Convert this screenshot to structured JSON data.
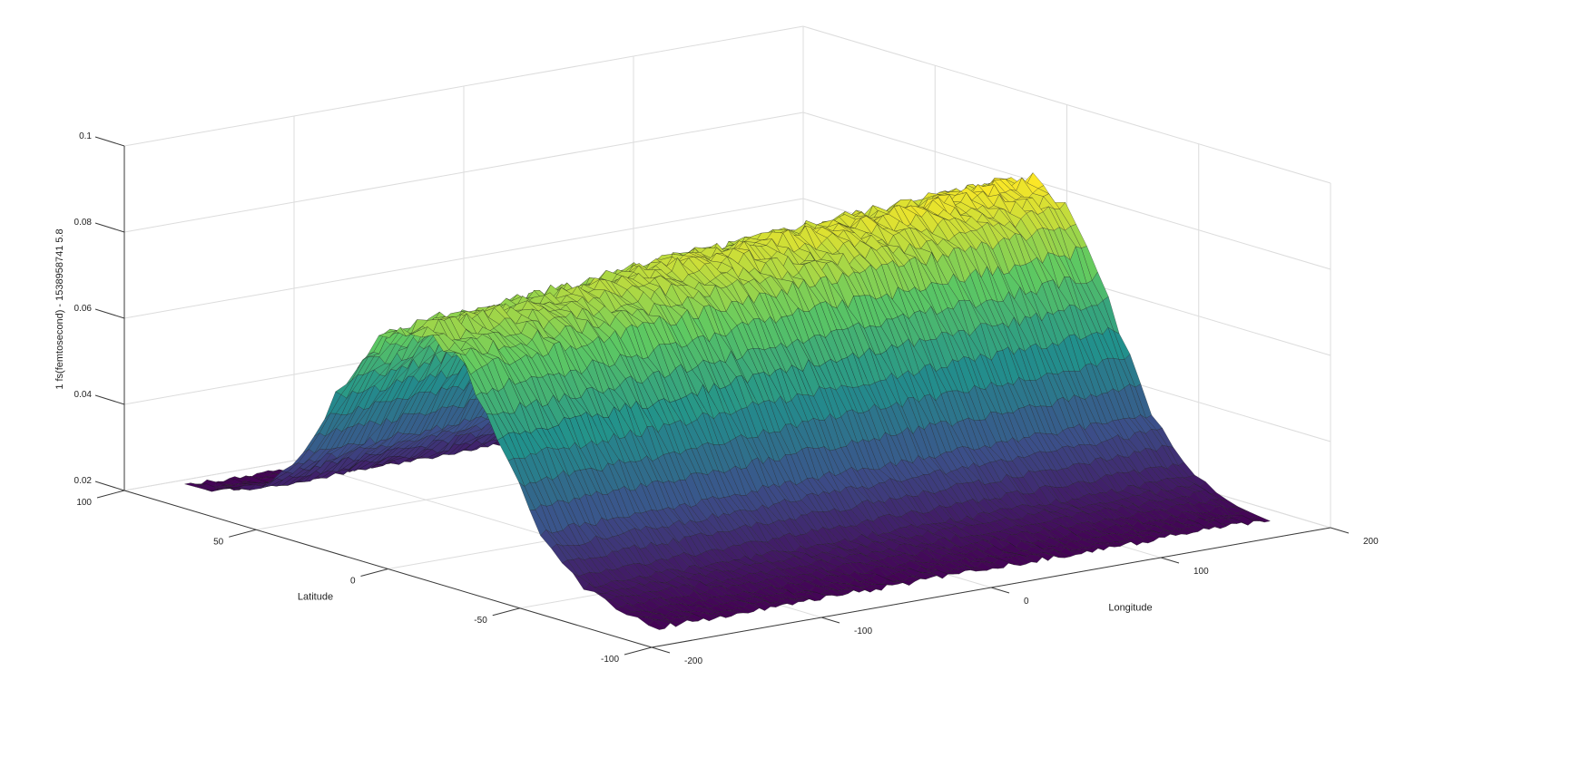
{
  "chart_data": {
    "type": "surface",
    "title": "",
    "xlabel": "Longitude",
    "ylabel": "Latitude",
    "zlabel": "1 fs(femtosecond) - 1538958741 5.8",
    "xlim": [
      -200,
      200
    ],
    "ylim": [
      -100,
      100
    ],
    "zlim": [
      0.02,
      0.1
    ],
    "x_ticks": [
      -200,
      -100,
      0,
      100,
      200
    ],
    "x_tick_labels": [
      "-200",
      "-100",
      "0",
      "100",
      "200"
    ],
    "y_ticks": [
      -100,
      -50,
      0,
      50,
      100
    ],
    "y_tick_labels": [
      "-100",
      "-50",
      "0",
      "50",
      "100"
    ],
    "z_ticks": [
      0.02,
      0.04,
      0.06,
      0.08,
      0.1
    ],
    "z_tick_labels": [
      "0.02",
      "0.04",
      "0.06",
      "0.08",
      "0.1"
    ],
    "grid": true,
    "colormap": "viridis",
    "colormap_stops": [
      "#440154",
      "#3b528b",
      "#21918c",
      "#5ec962",
      "#fde725"
    ],
    "surface_shape": "ridge along longitude, peaked near latitude 0, flat near edges",
    "latitude_profile": {
      "latitude": [
        -100,
        -80,
        -60,
        -45,
        -30,
        -15,
        0,
        15,
        30,
        45,
        60,
        80,
        100
      ],
      "value": [
        0.021,
        0.022,
        0.026,
        0.036,
        0.055,
        0.072,
        0.077,
        0.074,
        0.058,
        0.038,
        0.027,
        0.022,
        0.021
      ]
    },
    "longitude_variation": {
      "longitude": [
        -180,
        -100,
        0,
        100,
        180
      ],
      "peak_value": [
        0.074,
        0.076,
        0.08,
        0.082,
        0.084
      ]
    }
  },
  "colors": {
    "edge": "#1a1a1a",
    "grid": "#dcdcdc",
    "axis": "#3a3a3a"
  }
}
